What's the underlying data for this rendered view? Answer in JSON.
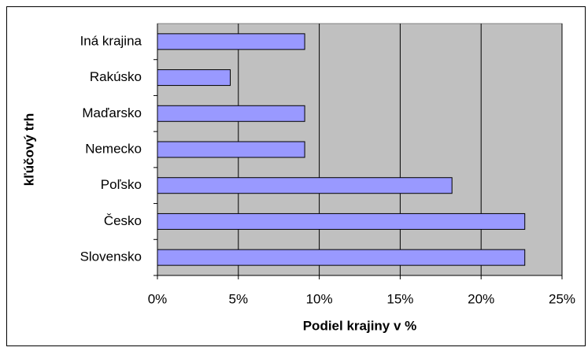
{
  "chart_data": {
    "type": "bar",
    "orientation": "horizontal",
    "x_label": "Podiel krajiny v %",
    "y_label": "kľúčový trh",
    "categories": [
      "Slovensko",
      "Česko",
      "Poľsko",
      "Nemecko",
      "Maďarsko",
      "Rakúsko",
      "Iná krajina"
    ],
    "values": [
      22.7,
      22.7,
      18.2,
      9.1,
      9.1,
      4.5,
      9.1
    ],
    "color": "#9999ff",
    "xlim": [
      0,
      25
    ],
    "xticks": [
      {
        "value": 0,
        "label": "0%"
      },
      {
        "value": 5,
        "label": "5%"
      },
      {
        "value": 10,
        "label": "10%"
      },
      {
        "value": 15,
        "label": "15%"
      },
      {
        "value": 20,
        "label": "20%"
      },
      {
        "value": 25,
        "label": "25%"
      }
    ],
    "grid": true
  }
}
